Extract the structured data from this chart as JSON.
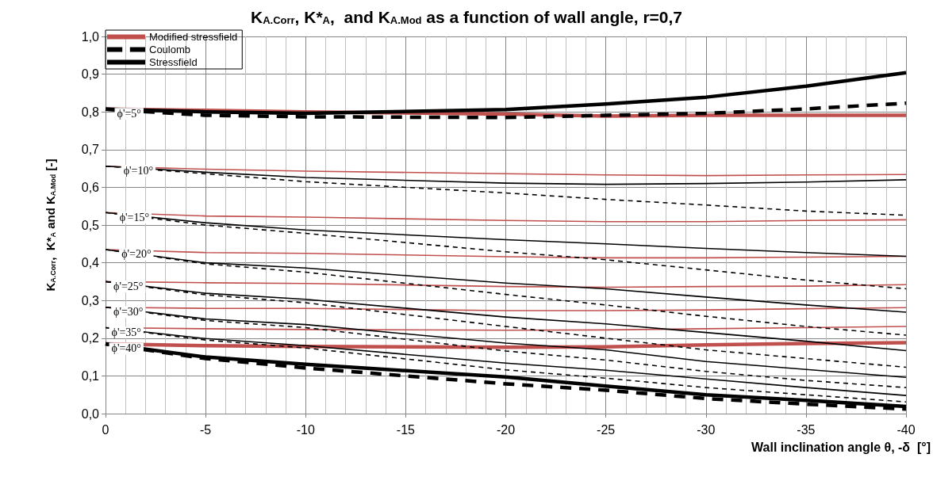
{
  "chart_data": {
    "type": "line",
    "title": "K$_{A.Corr}$, K*$_{A}$,  and K$_{A.Mod}$ as a function of wall angle, r=0,7",
    "xlabel": "Wall inclination angle θ, -δ  [°]",
    "ylabel": "K$_{A.Corr}$,  K*$_{A}$ and K$_{A.Mod}$ [-]",
    "x": [
      0,
      -5,
      -10,
      -20,
      -25,
      -30,
      -35,
      -40
    ],
    "xlim": [
      0,
      -40
    ],
    "xticks": [
      0,
      -5,
      -10,
      -15,
      -20,
      -25,
      -30,
      -35,
      -40
    ],
    "ylim": [
      0,
      1
    ],
    "yticks": [
      {
        "value": 0,
        "label": "0,0"
      },
      {
        "value": 0.1,
        "label": "0,1"
      },
      {
        "value": 0.2,
        "label": "0,2"
      },
      {
        "value": 0.3,
        "label": "0,3"
      },
      {
        "value": 0.4,
        "label": "0,4"
      },
      {
        "value": 0.5,
        "label": "0,5"
      },
      {
        "value": 0.6,
        "label": "0,6"
      },
      {
        "value": 0.7,
        "label": "0,7"
      },
      {
        "value": 0.8,
        "label": "0,8"
      },
      {
        "value": 0.9,
        "label": "0,9"
      },
      {
        "value": 1,
        "label": "1,0"
      }
    ],
    "grid": true,
    "legend": "top left",
    "marker": "none",
    "series": [
      {
        "name": "Modified stressfield",
        "color": "#c0504d",
        "line_style": "solid",
        "values": [
          0.807,
          0.804,
          0.8,
          0.794,
          0.789,
          0.791,
          0.791,
          0.791
        ]
      },
      {
        "color": "#c0504d",
        "line_style": "solid",
        "values": [
          0.656,
          0.648,
          0.643,
          0.636,
          0.633,
          0.631,
          0.633,
          0.634
        ]
      },
      {
        "color": "#c0504d",
        "line_style": "solid",
        "values": [
          0.533,
          0.524,
          0.521,
          0.512,
          0.509,
          0.509,
          0.512,
          0.514
        ]
      },
      {
        "color": "#c0504d",
        "line_style": "solid",
        "values": [
          0.435,
          0.427,
          0.425,
          0.416,
          0.413,
          0.413,
          0.415,
          0.417
        ]
      },
      {
        "color": "#c0504d",
        "line_style": "solid",
        "values": [
          0.35,
          0.347,
          0.345,
          0.337,
          0.335,
          0.337,
          0.338,
          0.342
        ]
      },
      {
        "color": "#c0504d",
        "line_style": "solid",
        "values": [
          0.282,
          0.279,
          0.279,
          0.273,
          0.273,
          0.275,
          0.278,
          0.281
        ]
      },
      {
        "color": "#c0504d",
        "line_style": "solid",
        "values": [
          0.228,
          0.225,
          0.223,
          0.221,
          0.222,
          0.225,
          0.228,
          0.231
        ]
      },
      {
        "color": "#c0504d",
        "line_style": "solid",
        "values": [
          0.185,
          0.18,
          0.178,
          0.176,
          0.177,
          0.182,
          0.186,
          0.188
        ]
      },
      {
        "name": "Coulomb",
        "color": "#000000",
        "line_style": "dashed",
        "values": [
          0.807,
          0.791,
          0.787,
          0.785,
          0.791,
          0.796,
          0.808,
          0.823
        ]
      },
      {
        "color": "#000000",
        "line_style": "dashed",
        "values": [
          0.656,
          0.636,
          0.615,
          0.585,
          0.568,
          0.553,
          0.537,
          0.526
        ]
      },
      {
        "color": "#000000",
        "line_style": "dashed",
        "values": [
          0.533,
          0.5,
          0.478,
          0.429,
          0.408,
          0.381,
          0.354,
          0.331
        ]
      },
      {
        "color": "#000000",
        "line_style": "dashed",
        "values": [
          0.435,
          0.397,
          0.375,
          0.316,
          0.288,
          0.258,
          0.231,
          0.208
        ]
      },
      {
        "color": "#000000",
        "line_style": "dashed",
        "values": [
          0.35,
          0.315,
          0.294,
          0.231,
          0.2,
          0.169,
          0.146,
          0.123
        ]
      },
      {
        "color": "#000000",
        "line_style": "dashed",
        "values": [
          0.282,
          0.247,
          0.228,
          0.166,
          0.142,
          0.112,
          0.088,
          0.069
        ]
      },
      {
        "color": "#000000",
        "line_style": "dashed",
        "values": [
          0.228,
          0.195,
          0.174,
          0.116,
          0.094,
          0.069,
          0.05,
          0.031
        ]
      },
      {
        "color": "#000000",
        "line_style": "dashed",
        "values": [
          0.185,
          0.146,
          0.121,
          0.079,
          0.062,
          0.04,
          0.025,
          0.012
        ]
      },
      {
        "name": "Stressfield",
        "color": "#000000",
        "line_style": "solid",
        "values": [
          0.807,
          0.8,
          0.796,
          0.806,
          0.821,
          0.839,
          0.868,
          0.904
        ]
      },
      {
        "color": "#000000",
        "line_style": "solid",
        "values": [
          0.656,
          0.64,
          0.626,
          0.611,
          0.608,
          0.61,
          0.614,
          0.62
        ]
      },
      {
        "color": "#000000",
        "line_style": "solid",
        "values": [
          0.533,
          0.506,
          0.487,
          0.461,
          0.45,
          0.438,
          0.427,
          0.417
        ]
      },
      {
        "color": "#000000",
        "line_style": "solid",
        "values": [
          0.435,
          0.4,
          0.386,
          0.346,
          0.331,
          0.309,
          0.288,
          0.269
        ]
      },
      {
        "color": "#000000",
        "line_style": "solid",
        "values": [
          0.35,
          0.319,
          0.303,
          0.256,
          0.238,
          0.215,
          0.192,
          0.167
        ]
      },
      {
        "color": "#000000",
        "line_style": "solid",
        "values": [
          0.282,
          0.251,
          0.236,
          0.187,
          0.169,
          0.138,
          0.117,
          0.096
        ]
      },
      {
        "color": "#000000",
        "line_style": "solid",
        "values": [
          0.228,
          0.199,
          0.18,
          0.134,
          0.115,
          0.092,
          0.069,
          0.048
        ]
      },
      {
        "color": "#000000",
        "line_style": "solid",
        "values": [
          0.185,
          0.15,
          0.131,
          0.097,
          0.073,
          0.05,
          0.035,
          0.019
        ]
      }
    ],
    "annotations": [
      {
        "text": "ϕ'=5°",
        "x": -1.9,
        "y": 0.807
      },
      {
        "text": "ϕ'=10°",
        "x": -2.5,
        "y": 0.656
      },
      {
        "text": "ϕ'=15°",
        "x": -2.3,
        "y": 0.533
      },
      {
        "text": "ϕ'=20°",
        "x": -2.4,
        "y": 0.435
      },
      {
        "text": "ϕ'=25°",
        "x": -2,
        "y": 0.35
      },
      {
        "text": "ϕ'=30°",
        "x": -2,
        "y": 0.282
      },
      {
        "text": "ϕ'=35°",
        "x": -1.9,
        "y": 0.228
      },
      {
        "text": "ϕ'=40°",
        "x": -1.9,
        "y": 0.185
      }
    ]
  }
}
